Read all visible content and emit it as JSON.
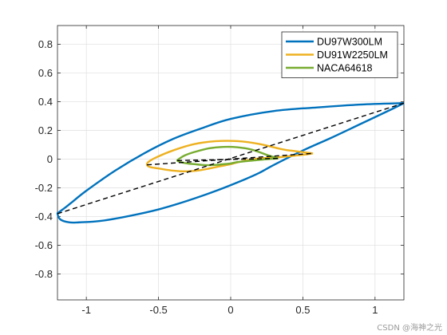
{
  "chart_data": {
    "type": "line",
    "title": "",
    "xlabel": "",
    "ylabel": "",
    "xlim": [
      -1.2,
      1.2
    ],
    "ylim": [
      -0.98,
      0.93
    ],
    "grid": true,
    "legend_position": "top-right",
    "xticks": [
      -1,
      -0.5,
      0,
      0.5,
      1
    ],
    "xtick_labels": [
      "-1",
      "-0.5",
      "0",
      "0.5",
      "1"
    ],
    "yticks": [
      0.8,
      0.6,
      0.4,
      0.2,
      0,
      -0.2,
      -0.4,
      -0.6,
      -0.8
    ],
    "ytick_labels": [
      "0.8",
      "0.6",
      "0.4",
      "0.2",
      "0",
      "-0.2",
      "-0.4",
      "-0.6",
      "-0.8"
    ],
    "series": [
      {
        "name": "DU97W300LM",
        "color": "#0072BD",
        "style": "solid",
        "x": [
          1.2,
          0.9,
          0.6,
          0.3,
          0.0,
          -0.2,
          -0.4,
          -0.6,
          -0.8,
          -1.0,
          -1.1,
          -1.15,
          -1.19,
          -1.2,
          -1.18,
          -1.12,
          -1.05,
          -0.9,
          -0.7,
          -0.5,
          -0.3,
          -0.1,
          0.1,
          0.2,
          0.3,
          0.5,
          0.7,
          0.9,
          1.1,
          1.2
        ],
        "y": [
          0.39,
          0.38,
          0.36,
          0.335,
          0.28,
          0.215,
          0.14,
          0.04,
          -0.08,
          -0.22,
          -0.3,
          -0.34,
          -0.37,
          -0.38,
          -0.42,
          -0.44,
          -0.44,
          -0.43,
          -0.395,
          -0.35,
          -0.29,
          -0.22,
          -0.14,
          -0.095,
          -0.04,
          0.06,
          0.15,
          0.245,
          0.34,
          0.39
        ]
      },
      {
        "name": "DU91W2250LM",
        "color": "#EDB120",
        "style": "solid",
        "x": [
          0.57,
          0.45,
          0.35,
          0.2,
          0.05,
          -0.1,
          -0.25,
          -0.4,
          -0.52,
          -0.57,
          -0.58,
          -0.56,
          -0.5,
          -0.4,
          -0.3,
          -0.2,
          -0.1,
          0.0,
          0.1,
          0.2,
          0.3,
          0.4,
          0.5,
          0.57
        ],
        "y": [
          0.04,
          0.055,
          0.07,
          0.105,
          0.125,
          0.125,
          0.105,
          0.06,
          0.01,
          -0.02,
          -0.04,
          -0.055,
          -0.065,
          -0.08,
          -0.085,
          -0.075,
          -0.055,
          -0.035,
          -0.01,
          0.005,
          0.01,
          0.02,
          0.03,
          0.04
        ]
      },
      {
        "name": "NACA64618",
        "color": "#77AC30",
        "style": "solid",
        "x": [
          0.33,
          0.25,
          0.15,
          0.05,
          -0.05,
          -0.15,
          -0.25,
          -0.32,
          -0.36,
          -0.37,
          -0.35,
          -0.3,
          -0.25,
          -0.2,
          -0.15,
          -0.1,
          -0.05,
          0.0,
          0.05,
          0.15,
          0.25,
          0.33
        ],
        "y": [
          0.005,
          0.03,
          0.065,
          0.082,
          0.085,
          0.075,
          0.05,
          0.025,
          0.0,
          -0.01,
          -0.02,
          -0.03,
          -0.035,
          -0.04,
          -0.042,
          -0.04,
          -0.035,
          -0.03,
          -0.02,
          -0.01,
          0.0,
          0.005
        ]
      },
      {
        "name": "",
        "color": "#000000",
        "style": "dashed",
        "x": [
          -1.2,
          1.2
        ],
        "y": [
          -0.38,
          0.39
        ]
      },
      {
        "name": "",
        "color": "#000000",
        "style": "dashed",
        "x": [
          -0.58,
          0.57
        ],
        "y": [
          -0.04,
          0.04
        ]
      },
      {
        "name": "",
        "color": "#000000",
        "style": "dashed",
        "x": [
          -0.37,
          0.33
        ],
        "y": [
          -0.01,
          0.005
        ]
      }
    ]
  },
  "watermark": "CSDN @海神之光"
}
